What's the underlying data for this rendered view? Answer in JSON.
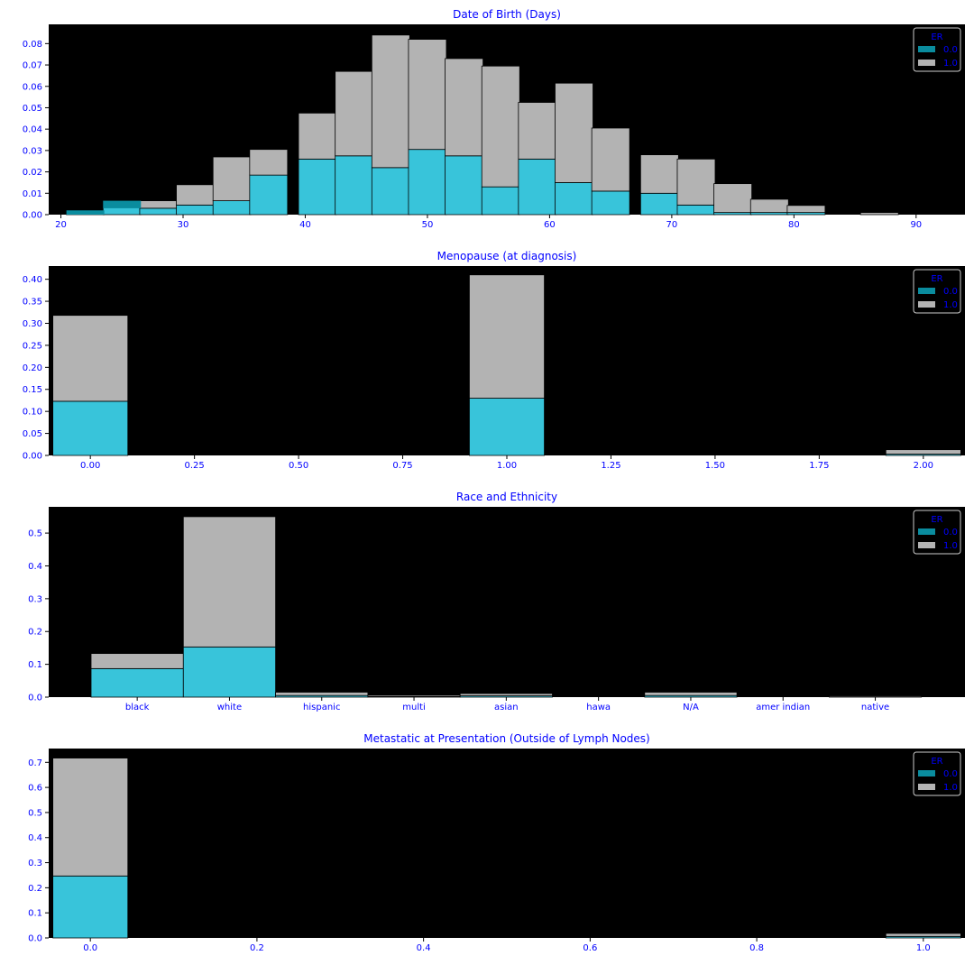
{
  "colors": {
    "axis_text": "#0000ff",
    "plot_bg": "#000000",
    "cyan": "#38c4da",
    "gray": "#b3b3b3",
    "cyan_dark": "#0a8c9e"
  },
  "chart_data": [
    {
      "type": "bar",
      "title": "Date of Birth (Days)",
      "x": [
        22,
        25,
        28,
        31,
        34,
        37,
        41,
        44,
        47,
        50,
        53,
        56,
        59,
        62,
        65,
        69,
        72,
        75,
        78,
        81,
        84,
        87,
        90
      ],
      "bin_width": 3.1,
      "series": [
        {
          "values": [
            0.002,
            0.0065,
            0.003,
            0.0045,
            0.0065,
            0.0185,
            0.026,
            0.0275,
            0.022,
            0.0305,
            0.0275,
            0.013,
            0.026,
            0.015,
            0.011,
            0.01,
            0.0045,
            0.001,
            0.001,
            0.001,
            0.0,
            0.0,
            0.0
          ]
        },
        {
          "values": [
            0.0,
            0.0,
            0.0035,
            0.0095,
            0.0205,
            0.012,
            0.0215,
            0.0395,
            0.062,
            0.0515,
            0.0455,
            0.0565,
            0.0265,
            0.0465,
            0.0295,
            0.018,
            0.0215,
            0.0135,
            0.0062,
            0.0033,
            0.0,
            0.001,
            0.0
          ]
        }
      ],
      "xlim": [
        19,
        94
      ],
      "ylim": [
        0,
        0.089
      ],
      "xticks": [
        20,
        30,
        40,
        50,
        60,
        70,
        80,
        90
      ],
      "yticks": [
        0.0,
        0.01,
        0.02,
        0.03,
        0.04,
        0.05,
        0.06,
        0.07,
        0.08
      ],
      "ytick_labels": [
        "0.00",
        "0.01",
        "0.02",
        "0.03",
        "0.04",
        "0.05",
        "0.06",
        "0.07",
        "0.08"
      ],
      "legend": {
        "title": "ER",
        "labels": [
          "0.0",
          "1.0"
        ],
        "placement": "top-right"
      }
    },
    {
      "type": "bar",
      "title": "Menopause (at diagnosis)",
      "x": [
        0.0,
        1.0,
        2.0
      ],
      "bin_width": 0.18,
      "series": [
        {
          "values": [
            0.123,
            0.13,
            0.003
          ]
        },
        {
          "values": [
            0.195,
            0.28,
            0.01
          ]
        }
      ],
      "xlim": [
        -0.1,
        2.1
      ],
      "ylim": [
        0,
        0.43
      ],
      "xticks": [
        0.0,
        0.25,
        0.5,
        0.75,
        1.0,
        1.25,
        1.5,
        1.75,
        2.0
      ],
      "xtick_labels": [
        "0.00",
        "0.25",
        "0.50",
        "0.75",
        "1.00",
        "1.25",
        "1.50",
        "1.75",
        "2.00"
      ],
      "yticks": [
        0.0,
        0.05,
        0.1,
        0.15,
        0.2,
        0.25,
        0.3,
        0.35,
        0.4
      ],
      "ytick_labels": [
        "0.00",
        "0.05",
        "0.10",
        "0.15",
        "0.20",
        "0.25",
        "0.30",
        "0.35",
        "0.40"
      ],
      "legend": {
        "title": "ER",
        "labels": [
          "0.0",
          "1.0"
        ],
        "placement": "top-right"
      }
    },
    {
      "type": "bar",
      "title": "Race and Ethnicity",
      "categories": [
        "black",
        "white",
        "hispanic",
        "multi",
        "asian",
        "hawa",
        "N/A",
        "amer indian",
        "native"
      ],
      "series": [
        {
          "values": [
            0.087,
            0.153,
            0.005,
            0.002,
            0.004,
            0.0,
            0.005,
            0.0,
            0.001
          ]
        },
        {
          "values": [
            0.046,
            0.397,
            0.01,
            0.004,
            0.007,
            0.0,
            0.01,
            0.0,
            0.003
          ]
        }
      ],
      "ylim": [
        0,
        0.58
      ],
      "yticks": [
        0.0,
        0.1,
        0.2,
        0.3,
        0.4,
        0.5
      ],
      "ytick_labels": [
        "0.0",
        "0.1",
        "0.2",
        "0.3",
        "0.4",
        "0.5"
      ],
      "legend": {
        "title": "ER",
        "labels": [
          "0.0",
          "1.0"
        ],
        "placement": "top-right"
      }
    },
    {
      "type": "bar",
      "title": "Metastatic at Presentation (Outside of Lymph Nodes)",
      "x": [
        0.0,
        1.0
      ],
      "bin_width": 0.09,
      "series": [
        {
          "values": [
            0.247,
            0.006
          ]
        },
        {
          "values": [
            0.47,
            0.012
          ]
        }
      ],
      "xlim": [
        -0.05,
        1.05
      ],
      "ylim": [
        0,
        0.755
      ],
      "xticks": [
        0.0,
        0.2,
        0.4,
        0.6,
        0.8,
        1.0
      ],
      "xtick_labels": [
        "0.0",
        "0.2",
        "0.4",
        "0.6",
        "0.8",
        "1.0"
      ],
      "yticks": [
        0.0,
        0.1,
        0.2,
        0.3,
        0.4,
        0.5,
        0.6,
        0.7
      ],
      "ytick_labels": [
        "0.0",
        "0.1",
        "0.2",
        "0.3",
        "0.4",
        "0.5",
        "0.6",
        "0.7"
      ],
      "legend": {
        "title": "ER",
        "labels": [
          "0.0",
          "1.0"
        ],
        "placement": "top-right"
      }
    }
  ]
}
